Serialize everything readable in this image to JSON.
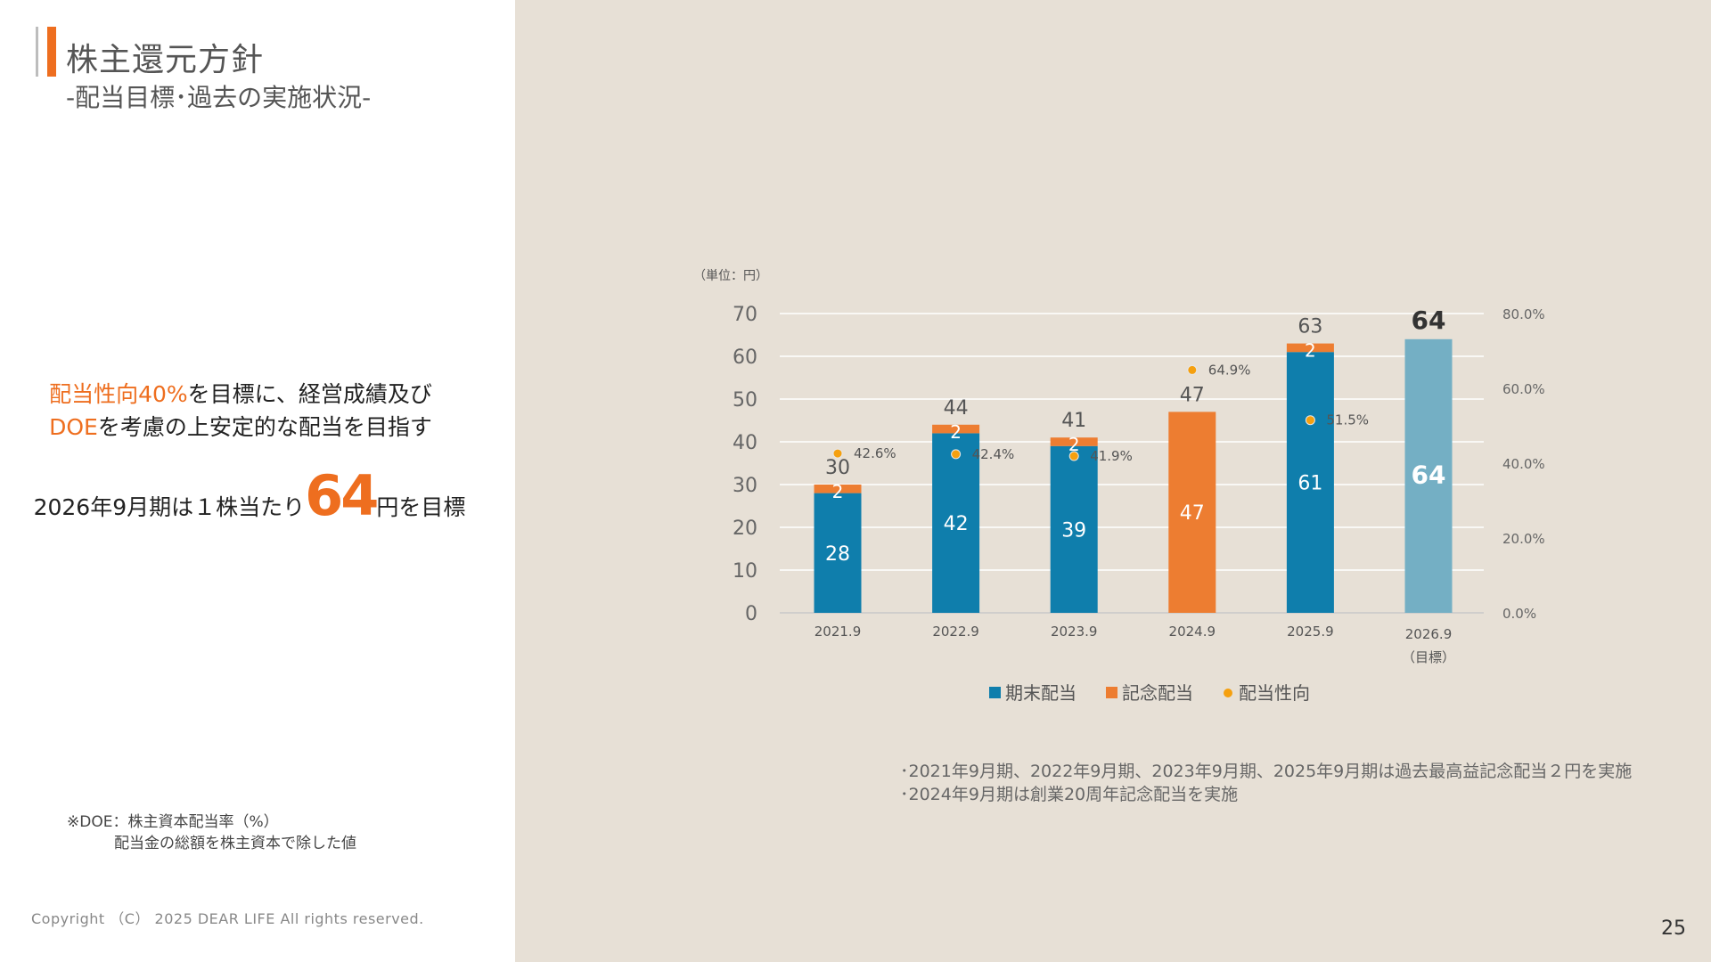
{
  "header": {
    "title": "株主還元方針",
    "subtitle": "-配当目標･過去の実施状況-"
  },
  "policy": {
    "line1_em": "配当性向40%",
    "line1_rest": "を目標に、経営成績及び",
    "line2_em": "DOE",
    "line2_rest": "を考慮の上安定的な配当を目指す"
  },
  "target": {
    "pre": "2026年9月期は１株当たり",
    "value": "64",
    "post": "円を目標"
  },
  "doe_note": {
    "line1": "※DOE：株主資本配当率（%）",
    "line2": "配当金の総額を株主資本で除した値"
  },
  "footer": {
    "copyright": "Copyright （C） 2025 DEAR LIFE All rights reserved.",
    "page_number": "25"
  },
  "chart_notes": [
    "･2021年9月期、2022年9月期、2023年9月期、2025年9月期は過去最高益記念配当２円を実施",
    "･2024年9月期は創業20周年記念配当を実施"
  ],
  "colors": {
    "accent_orange": "#ee6e1f",
    "bar_blue": "#0f7eac",
    "bar_target": "#74afc4",
    "bar_orange": "#ed7d31",
    "marker": "#f5a00f",
    "panel_bg": "#e7e0d6"
  },
  "chart_data": {
    "type": "bar",
    "unit_label": "（単位：円）",
    "categories": [
      "2021.9",
      "2022.9",
      "2023.9",
      "2024.9",
      "2025.9",
      "2026.9"
    ],
    "category_sublabels": [
      "",
      "",
      "",
      "",
      "",
      "（目標）"
    ],
    "series": [
      {
        "name": "期末配当",
        "values": [
          28,
          42,
          39,
          0,
          61,
          64
        ]
      },
      {
        "name": "記念配当",
        "values": [
          2,
          2,
          2,
          47,
          2,
          0
        ]
      }
    ],
    "totals": [
      30,
      44,
      41,
      47,
      63,
      64
    ],
    "payout_ratio": {
      "name": "配当性向",
      "values": [
        42.6,
        42.4,
        41.9,
        64.9,
        51.5,
        null
      ],
      "labels": [
        "42.6%",
        "42.4%",
        "41.9%",
        "64.9%",
        "51.5%",
        ""
      ]
    },
    "ylim": [
      0,
      70
    ],
    "yticks": [
      0,
      10,
      20,
      30,
      40,
      50,
      60,
      70
    ],
    "y2lim": [
      0,
      80
    ],
    "y2ticks": [
      "0.0%",
      "20.0%",
      "40.0%",
      "60.0%",
      "80.0%"
    ],
    "legend_position": "bottom",
    "grid": true
  }
}
